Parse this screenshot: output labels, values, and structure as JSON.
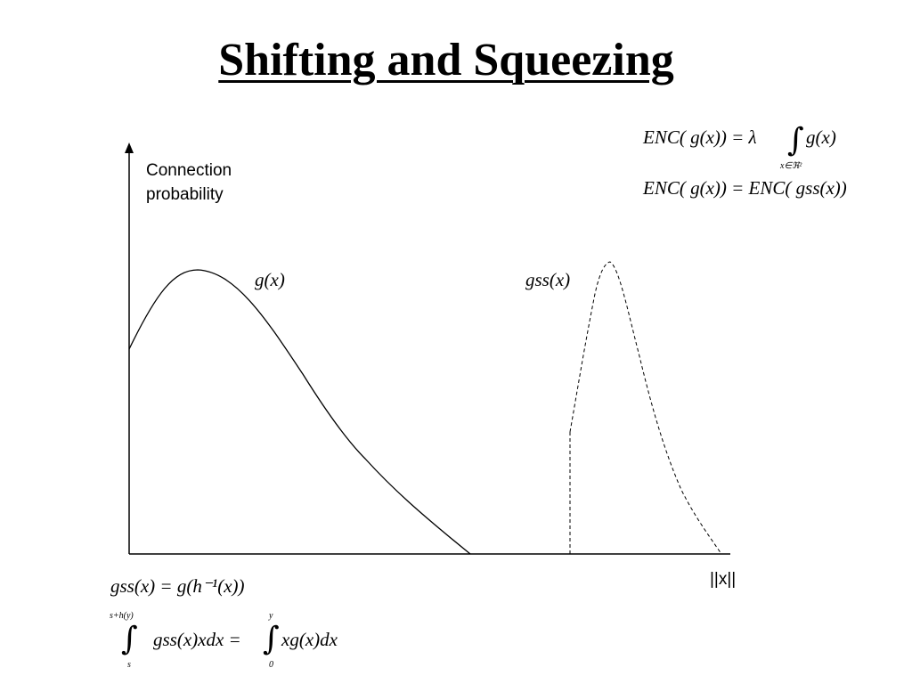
{
  "title": "Shifting and Squeezing",
  "axes": {
    "y_label_line1": "Connection",
    "y_label_line2": "probability",
    "x_label": "||x||"
  },
  "curves": {
    "g_label": "g(x)",
    "gss_label": "gss(x)"
  },
  "equations": {
    "enc_line1_left": "ENC( g(x)) = λ",
    "enc_line1_right": "g(x)",
    "enc_line1_sub": "x∈ℜ²",
    "enc_line2": "ENC( g(x)) = ENC( gss(x))",
    "gss_def": "gss(x) = g(h⁻¹(x))",
    "integral_upper_left": "s+h(y)",
    "integral_lower_left": "s",
    "integral_left_body": "gss(x)xdx =",
    "integral_upper_right": "y",
    "integral_lower_right": "0",
    "integral_right_body": "xg(x)dx"
  },
  "colors": {
    "ink": "#000000",
    "background": "#ffffff"
  }
}
